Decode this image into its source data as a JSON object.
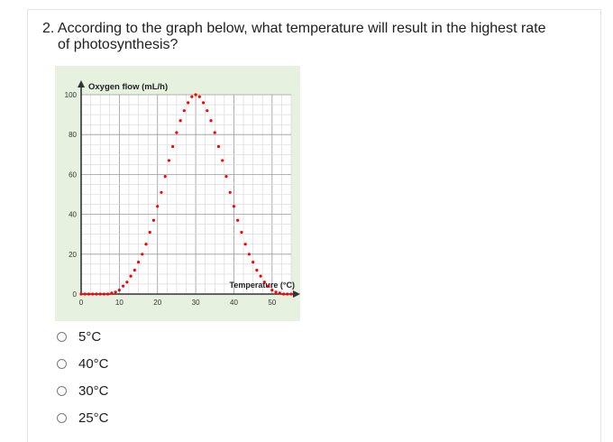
{
  "question": {
    "number": "2.",
    "text_line1": "According to the graph below, what temperature will result in the highest rate",
    "text_line2": "of photosynthesis?"
  },
  "options": [
    {
      "label": "5°C"
    },
    {
      "label": "40°C"
    },
    {
      "label": "30°C"
    },
    {
      "label": "25°C"
    }
  ],
  "chart_data": {
    "type": "scatter",
    "ylabel": "Oxygen flow (mL/h)",
    "xlabel": "Temperature (°C)",
    "xlim": [
      0,
      55
    ],
    "ylim": [
      0,
      100
    ],
    "x_ticks": [
      "0",
      "10",
      "20",
      "30",
      "40",
      "50"
    ],
    "y_ticks": [
      "0",
      "20",
      "40",
      "60",
      "80",
      "100"
    ],
    "grid": true,
    "marker_color": "#ff0000",
    "points": [
      [
        0,
        0
      ],
      [
        1,
        0
      ],
      [
        2,
        0
      ],
      [
        3,
        0
      ],
      [
        4,
        0
      ],
      [
        5,
        0
      ],
      [
        6,
        0
      ],
      [
        7,
        0
      ],
      [
        8,
        0.5
      ],
      [
        9,
        1
      ],
      [
        10,
        2
      ],
      [
        11,
        4
      ],
      [
        12,
        6
      ],
      [
        13,
        9
      ],
      [
        14,
        12
      ],
      [
        15,
        16
      ],
      [
        16,
        20
      ],
      [
        17,
        25
      ],
      [
        18,
        31
      ],
      [
        19,
        37
      ],
      [
        20,
        44
      ],
      [
        21,
        51
      ],
      [
        22,
        59
      ],
      [
        23,
        67
      ],
      [
        24,
        74
      ],
      [
        25,
        81
      ],
      [
        26,
        87
      ],
      [
        27,
        92
      ],
      [
        28,
        96
      ],
      [
        29,
        99
      ],
      [
        30,
        100
      ],
      [
        31,
        99
      ],
      [
        32,
        96
      ],
      [
        33,
        92
      ],
      [
        34,
        87
      ],
      [
        35,
        81
      ],
      [
        36,
        74
      ],
      [
        37,
        67
      ],
      [
        38,
        59
      ],
      [
        39,
        51
      ],
      [
        40,
        44
      ],
      [
        41,
        37
      ],
      [
        42,
        31
      ],
      [
        43,
        25
      ],
      [
        44,
        20
      ],
      [
        45,
        16
      ],
      [
        46,
        12
      ],
      [
        47,
        9
      ],
      [
        48,
        6
      ],
      [
        49,
        4
      ],
      [
        50,
        2
      ],
      [
        51,
        1
      ],
      [
        52,
        0.5
      ],
      [
        53,
        0
      ],
      [
        54,
        0
      ],
      [
        55,
        0
      ]
    ]
  }
}
